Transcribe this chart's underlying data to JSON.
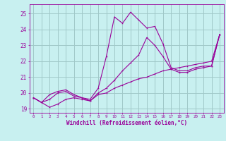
{
  "xlabel": "Windchill (Refroidissement éolien,°C)",
  "bg_color": "#c8f0f0",
  "grid_color": "#a0c8c8",
  "line_color": "#990099",
  "xlim": [
    -0.5,
    23.5
  ],
  "ylim": [
    18.75,
    25.6
  ],
  "yticks": [
    19,
    20,
    21,
    22,
    23,
    24,
    25
  ],
  "xticks": [
    0,
    1,
    2,
    3,
    4,
    5,
    6,
    7,
    8,
    9,
    10,
    11,
    12,
    13,
    14,
    15,
    16,
    17,
    18,
    19,
    20,
    21,
    22,
    23
  ],
  "series1_x": [
    0,
    1,
    2,
    3,
    4,
    5,
    6,
    7,
    8,
    9,
    10,
    11,
    12,
    13,
    14,
    15,
    16,
    17,
    18,
    19,
    20,
    21,
    22,
    23
  ],
  "series1_y": [
    19.7,
    19.4,
    19.1,
    19.3,
    19.6,
    19.7,
    19.6,
    19.5,
    19.9,
    20.0,
    20.3,
    20.5,
    20.7,
    20.9,
    21.0,
    21.2,
    21.4,
    21.5,
    21.6,
    21.7,
    21.8,
    21.9,
    22.0,
    23.7
  ],
  "series2_x": [
    0,
    1,
    2,
    3,
    4,
    5,
    6,
    7,
    8,
    9,
    10,
    11,
    12,
    13,
    14,
    15,
    16,
    17,
    18,
    19,
    20,
    21,
    22,
    23
  ],
  "series2_y": [
    19.7,
    19.4,
    19.6,
    20.0,
    20.1,
    19.8,
    19.7,
    19.5,
    20.0,
    20.3,
    20.8,
    21.4,
    21.9,
    22.4,
    23.5,
    23.0,
    22.3,
    21.5,
    21.3,
    21.3,
    21.5,
    21.6,
    21.7,
    23.7
  ],
  "series3_x": [
    0,
    1,
    2,
    3,
    4,
    5,
    6,
    7,
    8,
    9,
    10,
    11,
    12,
    13,
    14,
    15,
    16,
    17,
    18,
    19,
    20,
    21,
    22,
    23
  ],
  "series3_y": [
    19.7,
    19.4,
    19.9,
    20.1,
    20.2,
    19.9,
    19.7,
    19.6,
    20.3,
    22.3,
    24.8,
    24.4,
    25.1,
    24.6,
    24.1,
    24.2,
    23.1,
    21.6,
    21.4,
    21.4,
    21.6,
    21.7,
    21.7,
    23.7
  ],
  "xlabel_fontsize": 5.5,
  "ytick_fontsize": 5.5,
  "xtick_fontsize": 4.2,
  "linewidth": 0.8,
  "markersize": 2.0
}
